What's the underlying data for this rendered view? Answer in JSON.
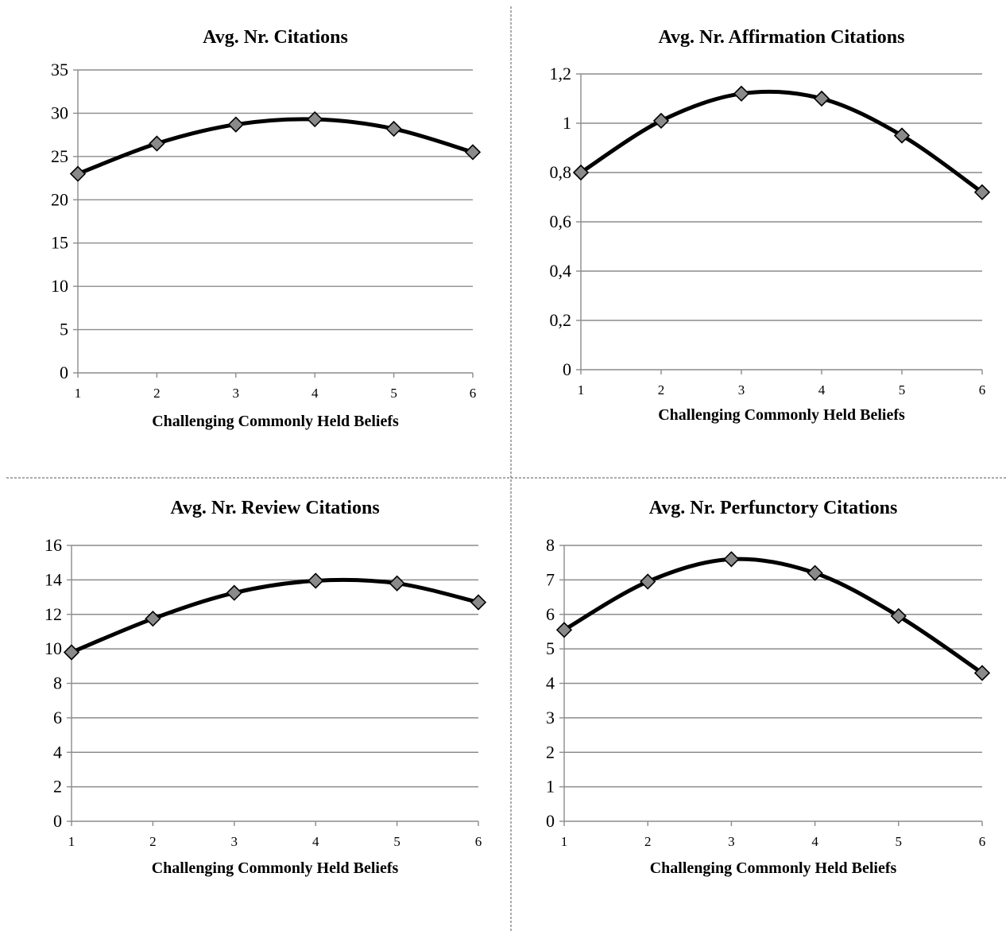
{
  "chart_data": [
    {
      "type": "line",
      "title": "Avg. Nr. Citations",
      "xlabel": "Challenging Commonly Held Beliefs",
      "ylabel": "",
      "x": [
        1,
        2,
        3,
        4,
        5,
        6
      ],
      "y_ticks": [
        "0",
        "5",
        "10",
        "15",
        "20",
        "25",
        "30",
        "35"
      ],
      "ylim": [
        0,
        35
      ],
      "grid": true,
      "legend": "none",
      "smooth": true,
      "series": [
        {
          "values": [
            23.0,
            26.5,
            28.7,
            29.3,
            28.2,
            25.5
          ]
        }
      ]
    },
    {
      "type": "line",
      "title": "Avg. Nr. Affirmation Citations",
      "xlabel": "Challenging Commonly Held Beliefs",
      "ylabel": "",
      "x": [
        1,
        2,
        3,
        4,
        5,
        6
      ],
      "y_ticks": [
        "0",
        "0,2",
        "0,4",
        "0,6",
        "0,8",
        "1",
        "1,2"
      ],
      "ylim": [
        0,
        1.2
      ],
      "grid": true,
      "legend": "none",
      "smooth": true,
      "series": [
        {
          "values": [
            0.8,
            1.01,
            1.12,
            1.1,
            0.95,
            0.72
          ]
        }
      ]
    },
    {
      "type": "line",
      "title": "Avg. Nr. Review Citations",
      "xlabel": "Challenging Commonly Held Beliefs",
      "ylabel": "",
      "x": [
        1,
        2,
        3,
        4,
        5,
        6
      ],
      "y_ticks": [
        "0",
        "2",
        "4",
        "6",
        "8",
        "10",
        "12",
        "14",
        "16"
      ],
      "ylim": [
        0,
        16
      ],
      "grid": true,
      "legend": "none",
      "smooth": true,
      "series": [
        {
          "values": [
            9.8,
            11.75,
            13.25,
            13.95,
            13.8,
            12.7
          ]
        }
      ]
    },
    {
      "type": "line",
      "title": "Avg. Nr. Perfunctory Citations",
      "xlabel": "Challenging Commonly Held Beliefs",
      "ylabel": "",
      "x": [
        1,
        2,
        3,
        4,
        5,
        6
      ],
      "y_ticks": [
        "0",
        "1",
        "2",
        "3",
        "4",
        "5",
        "6",
        "7",
        "8"
      ],
      "ylim": [
        0,
        8
      ],
      "grid": true,
      "legend": "none",
      "smooth": true,
      "series": [
        {
          "values": [
            5.55,
            6.95,
            7.6,
            7.2,
            5.95,
            4.3
          ]
        }
      ]
    }
  ],
  "colors": {
    "line": "#000000",
    "marker_fill": "#8a8a8a",
    "gridline": "#8c8c8c"
  },
  "marker_shape": "diamond"
}
